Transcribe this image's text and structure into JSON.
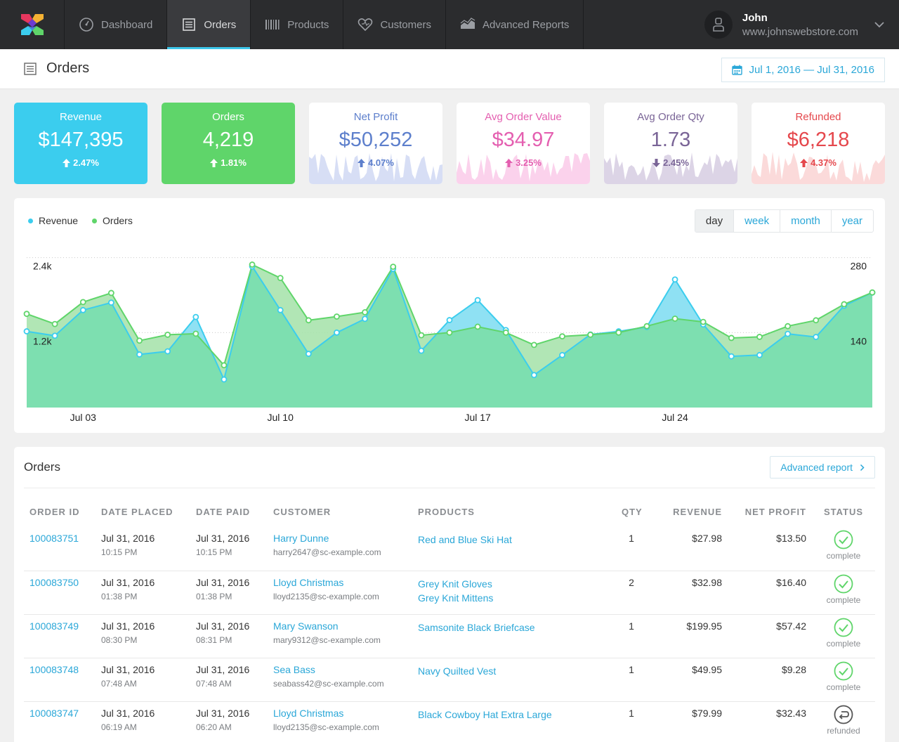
{
  "nav": {
    "tabs": [
      {
        "label": "Dashboard",
        "icon": "dashboard-gauge-icon"
      },
      {
        "label": "Orders",
        "icon": "orders-list-icon",
        "active": true
      },
      {
        "label": "Products",
        "icon": "barcode-icon"
      },
      {
        "label": "Customers",
        "icon": "heart-icon"
      },
      {
        "label": "Advanced Reports",
        "icon": "area-chart-icon"
      }
    ],
    "user": {
      "name": "John",
      "site": "www.johnswebstore.com"
    }
  },
  "page": {
    "title": "Orders",
    "date_range": "Jul 1, 2016 — Jul 31, 2016"
  },
  "kpis": [
    {
      "label": "Revenue",
      "value": "$147,395",
      "change": "2.47%",
      "direction": "up",
      "color": "#3bcdee",
      "style": "solid"
    },
    {
      "label": "Orders",
      "value": "4,219",
      "change": "1.81%",
      "direction": "up",
      "color": "#5fd56a",
      "style": "solid"
    },
    {
      "label": "Net Profit",
      "value": "$50,252",
      "change": "4.07%",
      "direction": "up",
      "color": "#5d7fcc",
      "fill": "#d7def5",
      "style": "spark"
    },
    {
      "label": "Avg Order Value",
      "value": "$34.97",
      "change": "3.25%",
      "direction": "up",
      "color": "#e45fb0",
      "fill": "#fbd2ec",
      "style": "spark"
    },
    {
      "label": "Avg Order Qty",
      "value": "1.73",
      "change": "2.45%",
      "direction": "down",
      "color": "#7a6597",
      "fill": "#dcd4e6",
      "style": "spark"
    },
    {
      "label": "Refunded",
      "value": "$6,218",
      "change": "4.37%",
      "direction": "up",
      "color": "#e5484d",
      "fill": "#fbdada",
      "style": "spark"
    }
  ],
  "chart_legend": [
    {
      "label": "Revenue",
      "color": "#3bcdee"
    },
    {
      "label": "Orders",
      "color": "#5fd56a"
    }
  ],
  "periods": [
    {
      "label": "day",
      "active": true
    },
    {
      "label": "week"
    },
    {
      "label": "month"
    },
    {
      "label": "year"
    }
  ],
  "chart_data": {
    "type": "area",
    "x": [
      "Jul 01",
      "Jul 02",
      "Jul 03",
      "Jul 04",
      "Jul 05",
      "Jul 06",
      "Jul 07",
      "Jul 08",
      "Jul 09",
      "Jul 10",
      "Jul 11",
      "Jul 12",
      "Jul 13",
      "Jul 14",
      "Jul 15",
      "Jul 16",
      "Jul 17",
      "Jul 18",
      "Jul 19",
      "Jul 20",
      "Jul 21",
      "Jul 22",
      "Jul 23",
      "Jul 24",
      "Jul 25",
      "Jul 26",
      "Jul 27",
      "Jul 28",
      "Jul 29",
      "Jul 30",
      "Jul 31"
    ],
    "xticks": [
      "Jul 03",
      "Jul 10",
      "Jul 17",
      "Jul 24"
    ],
    "series": [
      {
        "name": "Revenue",
        "axis": "left",
        "color": "#3bcdee",
        "values": [
          1220,
          1150,
          1560,
          1680,
          850,
          900,
          1450,
          450,
          2260,
          1560,
          860,
          1200,
          1420,
          2220,
          910,
          1400,
          1720,
          1240,
          520,
          840,
          1170,
          1220,
          1290,
          2050,
          1330,
          820,
          840,
          1180,
          1130,
          1630,
          1840
        ]
      },
      {
        "name": "Orders",
        "axis": "right",
        "color": "#5fd56a",
        "values": [
          175,
          156,
          197,
          214,
          125,
          136,
          138,
          79,
          267,
          242,
          163,
          170,
          178,
          263,
          135,
          140,
          151,
          140,
          117,
          133,
          136,
          140,
          152,
          166,
          160,
          130,
          132,
          152,
          163,
          193,
          215
        ]
      }
    ],
    "left_axis": {
      "ticks": [
        "1.2k",
        "2.4k"
      ],
      "range": [
        0,
        2700
      ]
    },
    "right_axis": {
      "ticks": [
        "140",
        "280"
      ],
      "range": [
        0,
        315
      ]
    }
  },
  "orders_panel": {
    "title": "Orders",
    "advanced_button": "Advanced report",
    "columns": [
      "ORDER ID",
      "DATE PLACED",
      "DATE PAID",
      "CUSTOMER",
      "PRODUCTS",
      "QTY",
      "REVENUE",
      "NET PROFIT",
      "STATUS"
    ],
    "rows": [
      {
        "id": "100083751",
        "placed_date": "Jul 31, 2016",
        "placed_time": "10:15 PM",
        "paid_date": "Jul 31, 2016",
        "paid_time": "10:15 PM",
        "customer": "Harry Dunne",
        "email": "harry2647@sc-example.com",
        "products": [
          "Red and Blue Ski Hat"
        ],
        "qty": "1",
        "revenue": "$27.98",
        "profit": "$13.50",
        "status": "complete"
      },
      {
        "id": "100083750",
        "placed_date": "Jul 31, 2016",
        "placed_time": "01:38 PM",
        "paid_date": "Jul 31, 2016",
        "paid_time": "01:38 PM",
        "customer": "Lloyd Christmas",
        "email": "lloyd2135@sc-example.com",
        "products": [
          "Grey Knit Gloves",
          "Grey Knit Mittens"
        ],
        "qty": "2",
        "revenue": "$32.98",
        "profit": "$16.40",
        "status": "complete"
      },
      {
        "id": "100083749",
        "placed_date": "Jul 31, 2016",
        "placed_time": "08:30 PM",
        "paid_date": "Jul 31, 2016",
        "paid_time": "08:31 PM",
        "customer": "Mary Swanson",
        "email": "mary9312@sc-example.com",
        "products": [
          "Samsonite Black Briefcase"
        ],
        "qty": "1",
        "revenue": "$199.95",
        "profit": "$57.42",
        "status": "complete"
      },
      {
        "id": "100083748",
        "placed_date": "Jul 31, 2016",
        "placed_time": "07:48 AM",
        "paid_date": "Jul 31, 2016",
        "paid_time": "07:48 AM",
        "customer": "Sea Bass",
        "email": "seabass42@sc-example.com",
        "products": [
          "Navy Quilted Vest"
        ],
        "qty": "1",
        "revenue": "$49.95",
        "profit": "$9.28",
        "status": "complete"
      },
      {
        "id": "100083747",
        "placed_date": "Jul 31, 2016",
        "placed_time": "06:19 AM",
        "paid_date": "Jul 31, 2016",
        "paid_time": "06:20 AM",
        "customer": "Lloyd Christmas",
        "email": "lloyd2135@sc-example.com",
        "products": [
          "Black Cowboy Hat Extra Large"
        ],
        "qty": "1",
        "revenue": "$79.99",
        "profit": "$32.43",
        "status": "refunded"
      }
    ]
  }
}
